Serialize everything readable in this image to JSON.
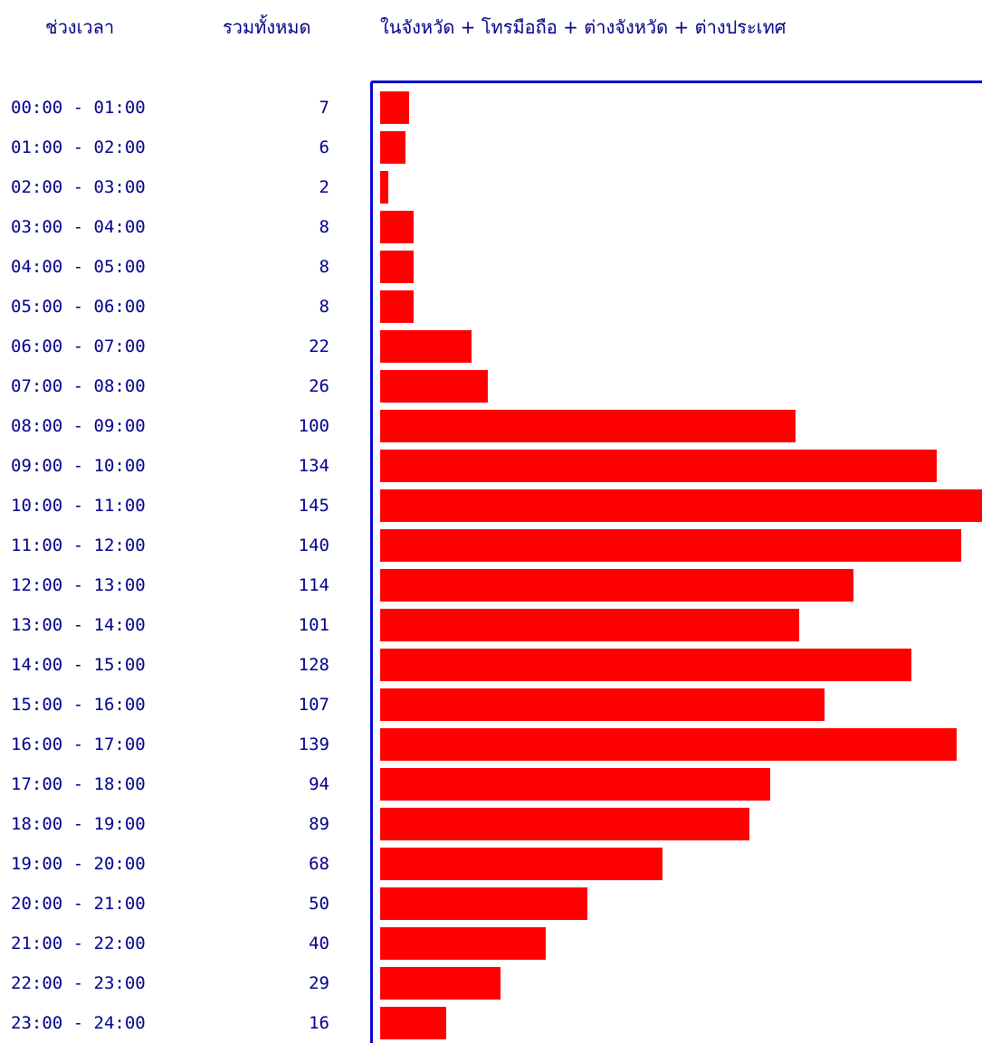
{
  "header": {
    "time_col": "ช่วงเวลา",
    "total_col": "รวมทั้งหมด",
    "series_col": "ในจังหวัด + โทรมือถือ + ต่างจังหวัด + ต่างประเทศ"
  },
  "colors": {
    "bar": "#ff0000",
    "text": "#00008b",
    "axis": "#0000cc"
  },
  "chart_data": {
    "type": "bar",
    "orientation": "horizontal",
    "categories": [
      "00:00 - 01:00",
      "01:00 - 02:00",
      "02:00 - 03:00",
      "03:00 - 04:00",
      "04:00 - 05:00",
      "05:00 - 06:00",
      "06:00 - 07:00",
      "07:00 - 08:00",
      "08:00 - 09:00",
      "09:00 - 10:00",
      "10:00 - 11:00",
      "11:00 - 12:00",
      "12:00 - 13:00",
      "13:00 - 14:00",
      "14:00 - 15:00",
      "15:00 - 16:00",
      "16:00 - 17:00",
      "17:00 - 18:00",
      "18:00 - 19:00",
      "19:00 - 20:00",
      "20:00 - 21:00",
      "21:00 - 22:00",
      "22:00 - 23:00",
      "23:00 - 24:00"
    ],
    "category_display": [
      "00:00 - 01:00",
      "01:00 - 02:00",
      "02:00 - 03:00",
      "03:00 - 04:00",
      "04:00 - 05:00",
      "05:00 - 06:00",
      "06:00 - 07:00",
      "07:00 - 08:00",
      "08:00 - 09:00",
      "09:00 - 10:00",
      "10:00 - 11:00",
      "11:00 - 12:00",
      "12:00 - 13:00",
      "13:00 - 14:00",
      "14:00 - 15:00",
      "15:00 - 16:00",
      "16:00 - 17:00",
      "17:00 - 18:00",
      "18:00 - 19:00",
      "19:00 - 20:00",
      "20:00 - 21:00",
      "21:00 - 22:00",
      "22:00 - 23:00",
      "23:00 - 24:00"
    ],
    "values": [
      7,
      6,
      2,
      8,
      8,
      8,
      22,
      26,
      100,
      134,
      145,
      140,
      114,
      101,
      128,
      107,
      139,
      94,
      89,
      68,
      50,
      40,
      29,
      16
    ],
    "value_labels": [
      "7",
      "6",
      "2",
      "8",
      "8",
      "8",
      "22",
      "26",
      "100",
      "134",
      "145",
      "140",
      "114",
      "101",
      "128",
      "107",
      "139",
      "94",
      "89",
      "68",
      "50",
      "40",
      "29",
      "16"
    ],
    "xlim": [
      0,
      145
    ],
    "grid": false,
    "legend": "none"
  }
}
